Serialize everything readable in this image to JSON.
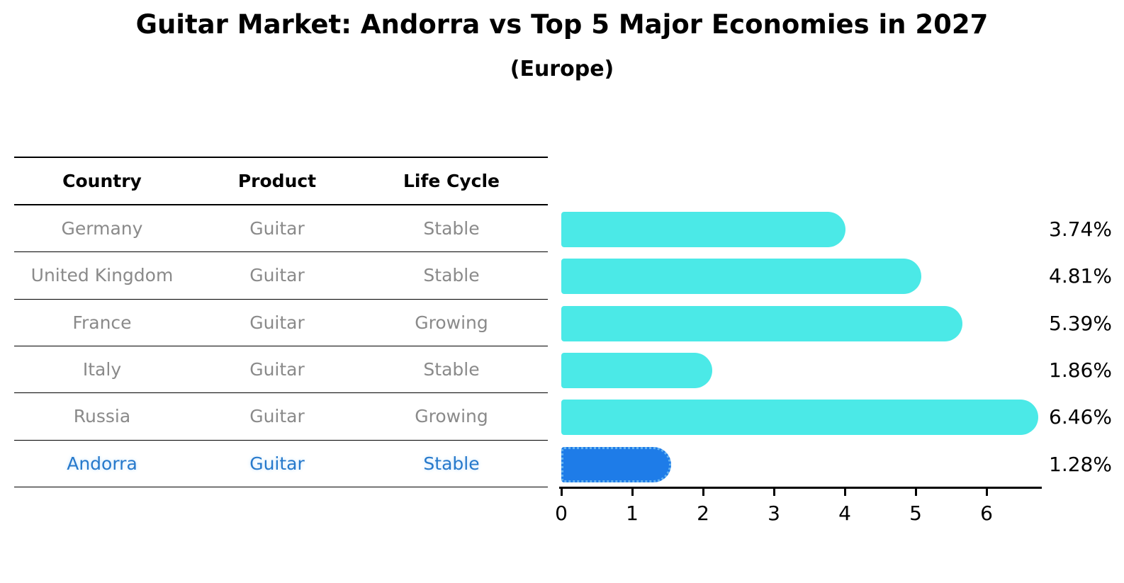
{
  "title": "Guitar Market: Andorra vs Top 5 Major Economies in 2027",
  "subtitle": "(Europe)",
  "table": {
    "headers": [
      "Country",
      "Product",
      "Life Cycle"
    ],
    "highlight_text_color": "#2679CB",
    "rows": [
      {
        "country": "Germany",
        "product": "Guitar",
        "life_cycle": "Stable",
        "highlight": false
      },
      {
        "country": "United Kingdom",
        "product": "Guitar",
        "life_cycle": "Stable",
        "highlight": false
      },
      {
        "country": "France",
        "product": "Guitar",
        "life_cycle": "Growing",
        "highlight": false
      },
      {
        "country": "Italy",
        "product": "Guitar",
        "life_cycle": "Stable",
        "highlight": false
      },
      {
        "country": "Russia",
        "product": "Guitar",
        "life_cycle": "Growing",
        "highlight": false
      },
      {
        "country": "Andorra",
        "product": "Guitar",
        "life_cycle": "Stable",
        "highlight": true
      }
    ]
  },
  "chart_data": {
    "type": "bar",
    "orientation": "horizontal",
    "title": "Guitar Market: Andorra vs Top 5 Major Economies in 2027",
    "subtitle": "(Europe)",
    "categories": [
      "Germany",
      "United Kingdom",
      "France",
      "Italy",
      "Russia",
      "Andorra"
    ],
    "values": [
      3.74,
      4.81,
      5.39,
      1.86,
      6.46,
      1.28
    ],
    "value_labels": [
      "3.74%",
      "4.81%",
      "5.39%",
      "1.86%",
      "6.46%",
      "1.28%"
    ],
    "highlight_index": 5,
    "bar_color": "#4BE9E7",
    "highlight_bar_color": "#1E7CE8",
    "highlight_border_color": "#66B3F0",
    "axis_color": "#000000",
    "xticks": [
      "0",
      "1",
      "2",
      "3",
      "4",
      "5",
      "6"
    ],
    "xlim": [
      0,
      6.78
    ],
    "grid": false,
    "legend": false
  }
}
